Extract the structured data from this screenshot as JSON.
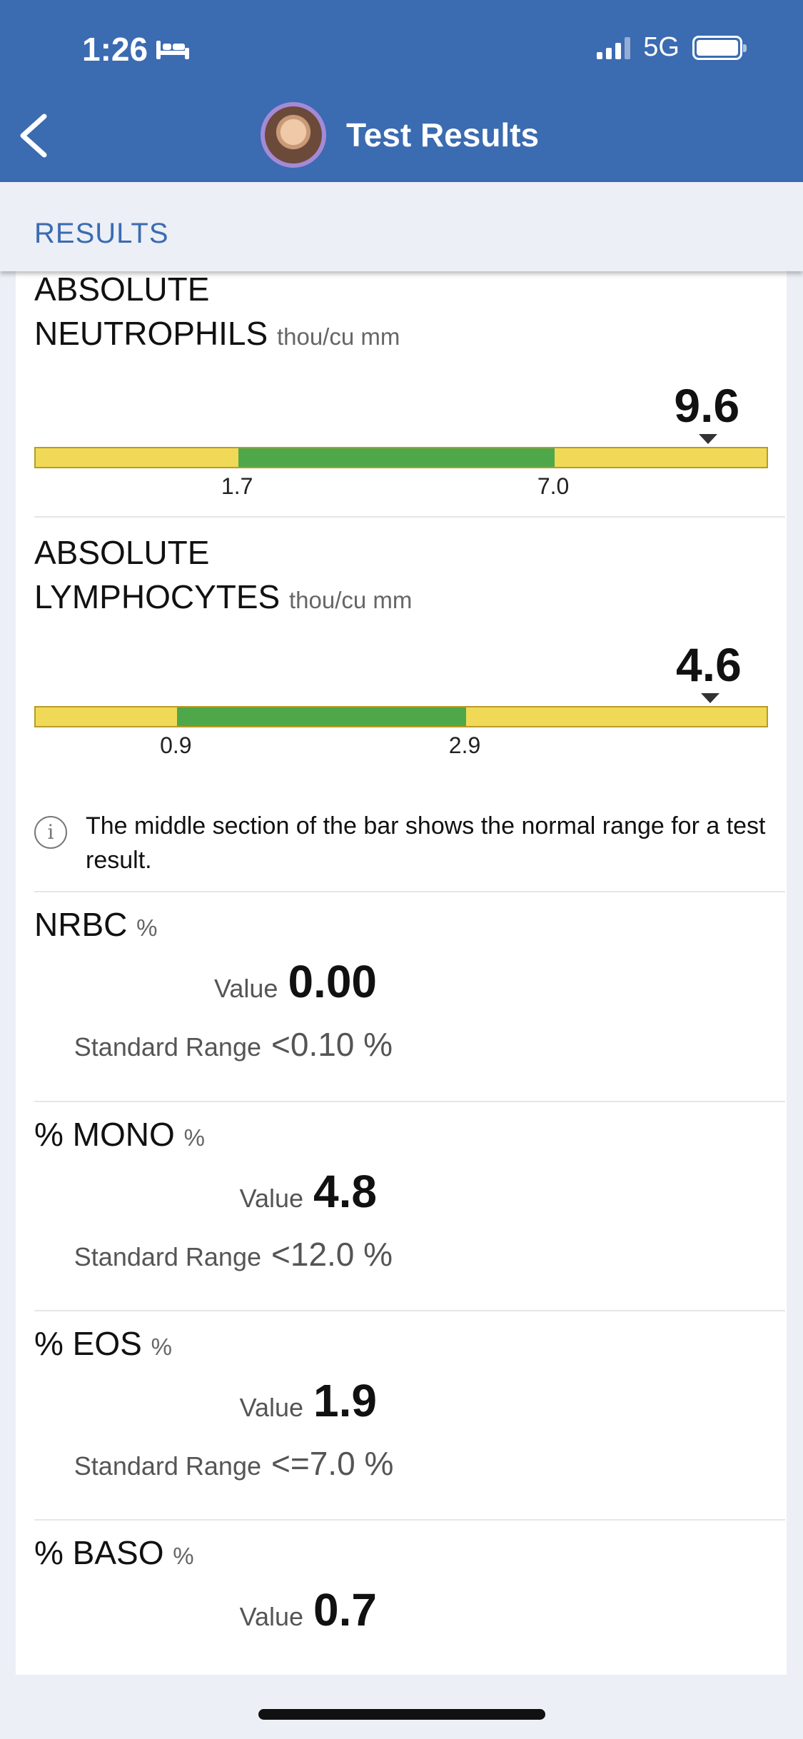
{
  "status_bar": {
    "time": "1:26",
    "network": "5G",
    "signal_bars_active": 3,
    "signal_bars_total": 4,
    "battery_level": 1.0
  },
  "header": {
    "title": "Test Results",
    "back_icon": "chevron-left-icon",
    "avatar_icon": "user-avatar",
    "background_color": "#3b6bb1"
  },
  "tab": {
    "label": "RESULTS",
    "color": "#3b6bb1"
  },
  "range_results": [
    {
      "name_line1": "ABSOLUTE",
      "name_line2": "NEUTROPHILS",
      "unit": "thou/cu mm",
      "value": "9.6",
      "value_num": 9.6,
      "low": "1.7",
      "high": "7.0",
      "low_num": 1.7,
      "high_num": 7.0,
      "scale_min": -1.7,
      "scale_max": 10.6
    },
    {
      "name_line1": "ABSOLUTE",
      "name_line2": "LYMPHOCYTES",
      "unit": "thou/cu mm",
      "value": "4.6",
      "value_num": 4.6,
      "low": "0.9",
      "high": "2.9",
      "low_num": 0.9,
      "high_num": 2.9,
      "scale_min": -0.08,
      "scale_max": 5.0
    }
  ],
  "range_colors": {
    "normal": "#4ea84a",
    "abnormal": "#f0d956"
  },
  "info": {
    "icon": "info-icon",
    "text": "The middle section of the bar shows the normal range for a test result."
  },
  "simple_results": [
    {
      "name": "NRBC",
      "unit": "%",
      "value_label": "Value",
      "value": "0.00",
      "range_label": "Standard Range",
      "range": "<0.10 %"
    },
    {
      "name": "% MONO",
      "unit": "%",
      "value_label": "Value",
      "value": "4.8",
      "range_label": "Standard Range",
      "range": "<12.0 %"
    },
    {
      "name": "% EOS",
      "unit": "%",
      "value_label": "Value",
      "value": "1.9",
      "range_label": "Standard Range",
      "range": "<=7.0 %"
    },
    {
      "name": "% BASO",
      "unit": "%",
      "value_label": "Value",
      "value": "0.7"
    }
  ]
}
